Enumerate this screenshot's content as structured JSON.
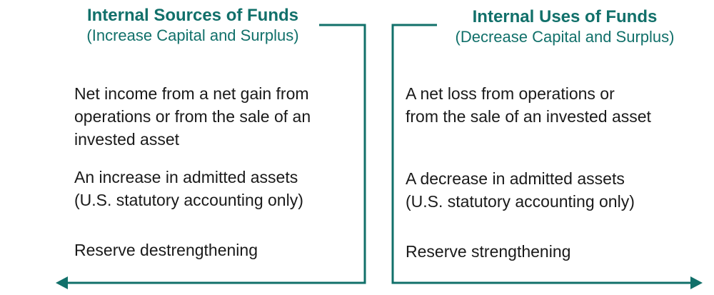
{
  "left_column": {
    "title": "Internal Sources of Funds",
    "subtitle": "(Increase Capital and Surplus)",
    "items": [
      {
        "lines": [
          "Net income from a net gain from",
          "operations or from the sale of an",
          "invested asset"
        ]
      },
      {
        "lines": [
          "An increase in admitted assets",
          "(U.S. statutory accounting only)"
        ]
      },
      {
        "lines": [
          "Reserve destrengthening"
        ]
      }
    ]
  },
  "right_column": {
    "title": "Internal Uses of Funds",
    "subtitle": "(Decrease Capital and Surplus)",
    "items": [
      {
        "lines": [
          "A net loss from operations or",
          "from the sale of an invested asset"
        ]
      },
      {
        "lines": [
          "A decrease in admitted assets",
          "(U.S. statutory accounting only)"
        ]
      },
      {
        "lines": [
          "Reserve strengthening"
        ]
      }
    ]
  },
  "colors": {
    "accent": "#11706a",
    "text": "#1a1a1a"
  }
}
